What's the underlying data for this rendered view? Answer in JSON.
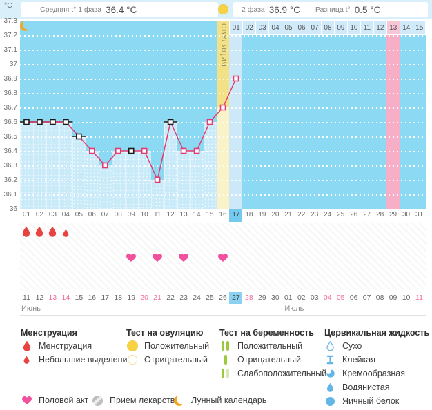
{
  "header": {
    "avg_label": "Средняя t° 1 фаза",
    "avg_value": "36.4 °C",
    "phase2_label": "2 фаза",
    "phase2_value": "36.9 °C",
    "diff_label": "Разница t°",
    "diff_value": "0.5 °C",
    "unit": "°C",
    "ovulation_label": "ОВУЛЯЦИЯ"
  },
  "chart_data": {
    "type": "line",
    "ylabel": "°C",
    "ylim": [
      36.0,
      37.3
    ],
    "ytick_step": 0.1,
    "y_ticks": [
      "37.3",
      "37.2",
      "37.1",
      "37",
      "36.9",
      "36.8",
      "36.7",
      "36.6",
      "36.5",
      "36.4",
      "36.3",
      "36.2",
      "36.1",
      "36"
    ],
    "x_days": [
      "01",
      "02",
      "03",
      "04",
      "05",
      "06",
      "07",
      "08",
      "09",
      "10",
      "11",
      "12",
      "13",
      "14",
      "15",
      "16",
      "17",
      "18",
      "19",
      "20",
      "21",
      "22",
      "23",
      "24",
      "25",
      "26",
      "27",
      "28",
      "29",
      "30",
      "31"
    ],
    "temps_by_day": [
      36.6,
      36.6,
      36.6,
      36.6,
      36.5,
      36.4,
      36.3,
      36.4,
      36.4,
      36.4,
      36.2,
      36.6,
      36.4,
      36.4,
      36.6,
      36.7,
      36.9
    ],
    "black_marker_days": [
      1,
      2,
      3,
      4,
      5,
      9,
      12
    ],
    "whisker_days": [
      1,
      2,
      3,
      4,
      5,
      12
    ],
    "ovulation_day": 16,
    "today_cycle_day": 17,
    "predicted_period_day": 29,
    "moon_day": 26,
    "menstruation": [
      {
        "day": 1,
        "size": "big"
      },
      {
        "day": 2,
        "size": "big"
      },
      {
        "day": 3,
        "size": "big"
      },
      {
        "day": 4,
        "size": "small"
      }
    ],
    "intercourse_days": [
      9,
      11,
      13,
      16
    ],
    "next_cycle_overlay": {
      "start_cycle_day": 17,
      "labels": [
        "01",
        "02",
        "03",
        "04",
        "05",
        "06",
        "07",
        "08",
        "09",
        "10",
        "11",
        "12",
        "13",
        "14",
        "15"
      ],
      "highlight_label": "13"
    }
  },
  "dates_row": {
    "june_label": "Июнь",
    "july_label": "Июль",
    "labels": [
      "11",
      "12",
      "13",
      "14",
      "15",
      "16",
      "17",
      "18",
      "19",
      "20",
      "21",
      "22",
      "23",
      "24",
      "25",
      "26",
      "27",
      "28",
      "29",
      "30",
      "01",
      "02",
      "03",
      "04",
      "05",
      "06",
      "07",
      "08",
      "09",
      "10",
      "11"
    ],
    "weekend_indexes": [
      2,
      3,
      9,
      10,
      17,
      23,
      24,
      30
    ],
    "today_index": 16,
    "month_break_index": 20
  },
  "legend": {
    "sections": [
      {
        "title": "Менструация",
        "items": [
          {
            "icon": "drop-big-red",
            "label": "Менструация"
          },
          {
            "icon": "drop-small-red",
            "label": "Небольшие выделения"
          }
        ]
      },
      {
        "title": "Тест на овуляцию",
        "items": [
          {
            "icon": "circle-yellow-filled",
            "label": "Положительный"
          },
          {
            "icon": "circle-yellow-outline",
            "label": "Отрицательный"
          }
        ]
      },
      {
        "title": "Тест на беременность",
        "items": [
          {
            "icon": "bars-two-green",
            "label": "Положительный"
          },
          {
            "icon": "bar-one-green",
            "label": "Отрицательный"
          },
          {
            "icon": "bars-weak-green",
            "label": "Слабоположительный"
          }
        ]
      },
      {
        "title": "Цервикальная жидкость",
        "items": [
          {
            "icon": "drop-outline-blue",
            "label": "Сухо"
          },
          {
            "icon": "ibeam-blue",
            "label": "Клейкая"
          },
          {
            "icon": "comma-blue",
            "label": "Кремообразная"
          },
          {
            "icon": "drop-filled-blue",
            "label": "Водянистая"
          },
          {
            "icon": "circle-filled-blue",
            "label": "Яичный белок"
          }
        ]
      }
    ],
    "footer_items": [
      {
        "icon": "heart-pink",
        "label": "Половой акт"
      },
      {
        "icon": "pill-gray",
        "label": "Прием лекарств"
      },
      {
        "icon": "moon-orange",
        "label": "Лунный календарь"
      }
    ]
  },
  "colors": {
    "header_bg": "#D9EFFA",
    "sky": "#8CD9F3",
    "fill": "#C9EAF9",
    "line": "#E53A6F",
    "marker_black": "#1A1A1A",
    "ovulation_top": "#F2E187",
    "ovulation_bottom": "#FAF3CA",
    "today_column": "#CDE9F7",
    "period_pink": "#F7AFC7",
    "overlay_cell": "#D0EAF9",
    "overlay_pink": "#F8C6D6",
    "today_cell": "#74C9EE",
    "weekend_text": "#F06C98",
    "menses_red": "#E74340",
    "heart_pink": "#F0509E",
    "moon_orange": "#F6A51F",
    "test_yellow": "#F8D243",
    "preg_green": "#9CC83C",
    "preg_green_weak": "#D9E9B3",
    "cervical_blue": "#64B6E6"
  }
}
